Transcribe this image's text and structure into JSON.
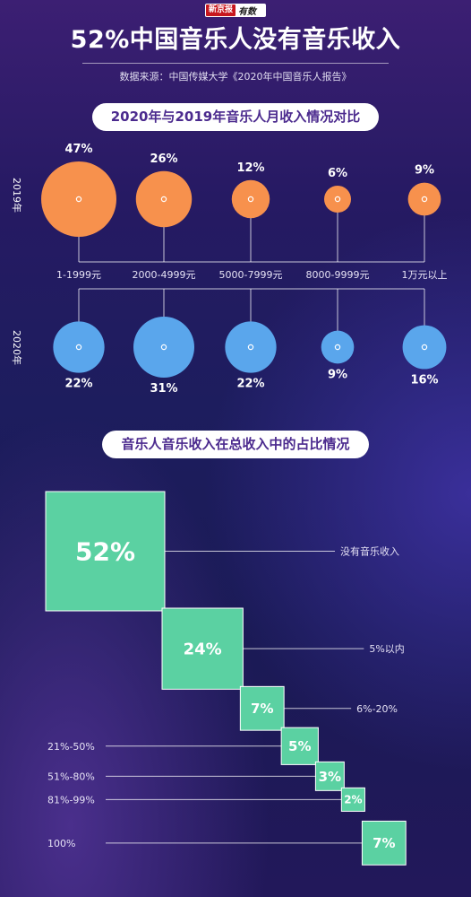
{
  "header": {
    "logo_left": "新京报",
    "logo_right": "有数",
    "title": "52%中国音乐人没有音乐收入",
    "source": "数据来源：中国传媒大学《2020年中国音乐人报告》"
  },
  "section1": {
    "heading": "2020年与2019年音乐人月收入情况对比",
    "year_top": "2019年",
    "year_bottom": "2020年"
  },
  "section2": {
    "heading": "音乐人音乐收入在总收入中的占比情况"
  },
  "colors": {
    "orange": "#f7914d",
    "blue": "#5aa6ec",
    "green": "#5bd1a2",
    "accent": "#4b2a8e"
  },
  "chart_data": [
    {
      "type": "bubble",
      "title": "2020年与2019年音乐人月收入情况对比",
      "categories": [
        "1-1999元",
        "2000-4999元",
        "5000-7999元",
        "8000-9999元",
        "1万元以上"
      ],
      "series": [
        {
          "name": "2019年",
          "values": [
            47,
            26,
            12,
            6,
            9
          ],
          "labels": [
            "47%",
            "26%",
            "12%",
            "6%",
            "9%"
          ],
          "color": "#f7914d"
        },
        {
          "name": "2020年",
          "values": [
            22,
            31,
            22,
            9,
            16
          ],
          "labels": [
            "22%",
            "31%",
            "22%",
            "9%",
            "16%"
          ],
          "color": "#5aa6ec"
        }
      ]
    },
    {
      "type": "treemap-steps",
      "title": "音乐人音乐收入在总收入中的占比情况",
      "categories": [
        "没有音乐收入",
        "5%以内",
        "6%-20%",
        "21%-50%",
        "51%-80%",
        "81%-99%",
        "100%"
      ],
      "values": [
        52,
        24,
        7,
        5,
        3,
        2,
        7
      ],
      "labels": [
        "52%",
        "24%",
        "7%",
        "5%",
        "3%",
        "2%",
        "7%"
      ],
      "color": "#5bd1a2"
    }
  ]
}
